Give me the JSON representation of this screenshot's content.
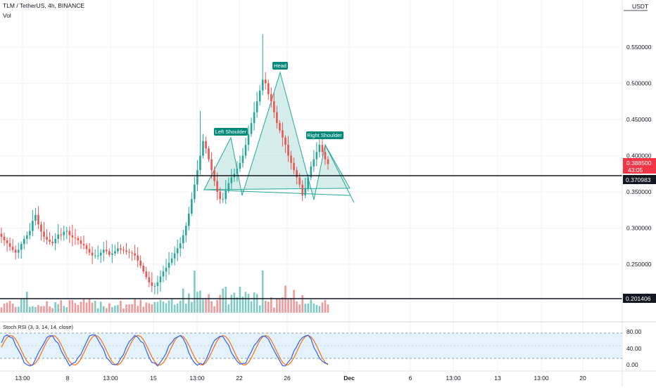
{
  "header": {
    "symbol_line": "TLM / TetherUS, 4h, BINANCE",
    "volume_label": "Vol",
    "currency": "USDT"
  },
  "price_axis": {
    "ticks": [
      "0.550000",
      "0.500000",
      "0.450000",
      "0.400000",
      "0.350000",
      "0.300000",
      "0.250000"
    ],
    "current_price": "0.388500",
    "countdown": "43:05",
    "support_a": "0.370983",
    "support_b": "0.201406"
  },
  "rsi": {
    "label": "Stoch RSI (3, 3, 14, 14, close)",
    "ticks": [
      "80.00",
      "40.00",
      "0.00"
    ]
  },
  "time_axis": {
    "labels": [
      "13:00",
      "8",
      "13:00",
      "15",
      "13:00",
      "22",
      "26",
      "Dec",
      "6",
      "13:00",
      "13",
      "13:00",
      "20"
    ]
  },
  "annotations": {
    "head": "Head",
    "left_shoulder": "Left Shoulder",
    "right_shoulder": "Right Shoulder"
  },
  "colors": {
    "up": "#26a69a",
    "down": "#ef5350",
    "pattern_fill": "#b2dfdb",
    "pattern_stroke": "#26a69a",
    "label_bg": "#00897b",
    "rsi_k": "#2962ff",
    "rsi_d": "#ff6d00",
    "rsi_band": "#e3f2fd",
    "price_tag": "#f23645"
  },
  "chart_data": {
    "type": "candlestick",
    "price_ylim": [
      0.2,
      0.57
    ],
    "horizontal_levels": [
      0.370983,
      0.201406
    ],
    "closes": [
      0.288,
      0.283,
      0.279,
      0.274,
      0.27,
      0.266,
      0.27,
      0.278,
      0.285,
      0.29,
      0.296,
      0.31,
      0.318,
      0.305,
      0.295,
      0.288,
      0.284,
      0.281,
      0.279,
      0.285,
      0.291,
      0.29,
      0.295,
      0.296,
      0.29,
      0.287,
      0.286,
      0.283,
      0.278,
      0.276,
      0.271,
      0.266,
      0.262,
      0.262,
      0.262,
      0.266,
      0.27,
      0.268,
      0.263,
      0.265,
      0.268,
      0.272,
      0.27,
      0.269,
      0.267,
      0.266,
      0.265,
      0.262,
      0.255,
      0.248,
      0.24,
      0.232,
      0.225,
      0.22,
      0.22,
      0.225,
      0.233,
      0.24,
      0.245,
      0.252,
      0.258,
      0.265,
      0.272,
      0.279,
      0.29,
      0.303,
      0.32,
      0.34,
      0.36,
      0.38,
      0.4,
      0.42,
      0.41,
      0.395,
      0.38,
      0.365,
      0.35,
      0.34,
      0.34,
      0.352,
      0.362,
      0.37,
      0.375,
      0.382,
      0.39,
      0.4,
      0.415,
      0.43,
      0.445,
      0.46,
      0.475,
      0.49,
      0.505,
      0.5,
      0.485,
      0.475,
      0.46,
      0.445,
      0.435,
      0.425,
      0.415,
      0.4,
      0.39,
      0.38,
      0.37,
      0.36,
      0.345,
      0.355,
      0.37,
      0.385,
      0.395,
      0.405,
      0.415,
      0.405,
      0.395,
      0.3885
    ],
    "volume_ylim": [
      0,
      1
    ],
    "stoch_rsi_ylim": [
      0,
      100
    ],
    "stoch_rsi_bands": [
      80,
      20
    ],
    "x_labels": [
      "13:00",
      "8",
      "13:00",
      "15",
      "13:00",
      "22",
      "26",
      "Dec",
      "6",
      "13:00",
      "13",
      "13:00",
      "20"
    ],
    "pattern_points": {
      "left_shoulder": 0.425,
      "head": 0.515,
      "right_shoulder": 0.415,
      "neckline_start": 0.345,
      "neckline_end": 0.355
    }
  }
}
